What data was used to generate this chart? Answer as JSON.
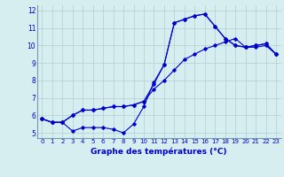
{
  "xlabel": "Graphe des températures (°C)",
  "bg_color": "#d6eef0",
  "grid_color": "#b0cdd0",
  "line_color": "#0000cc",
  "xlim": [
    -0.5,
    23.5
  ],
  "ylim": [
    4.7,
    12.3
  ],
  "xticks": [
    0,
    1,
    2,
    3,
    4,
    5,
    6,
    7,
    8,
    9,
    10,
    11,
    12,
    13,
    14,
    15,
    16,
    17,
    18,
    19,
    20,
    21,
    22,
    23
  ],
  "yticks": [
    5,
    6,
    7,
    8,
    9,
    10,
    11,
    12
  ],
  "line1_x": [
    0,
    1,
    2,
    3,
    4,
    5,
    6,
    7,
    8,
    9,
    10,
    11,
    12,
    13,
    14,
    15,
    16,
    17,
    18,
    19,
    20,
    21,
    22,
    23
  ],
  "line1_y": [
    5.8,
    5.6,
    5.6,
    6.0,
    6.3,
    6.3,
    6.4,
    6.5,
    6.5,
    6.6,
    6.8,
    7.8,
    8.9,
    11.3,
    11.5,
    11.7,
    11.8,
    11.1,
    10.4,
    10.0,
    9.9,
    10.0,
    10.1,
    9.5
  ],
  "line2_x": [
    0,
    1,
    2,
    3,
    4,
    5,
    6,
    7,
    8,
    9,
    10,
    11,
    12,
    13,
    14,
    15,
    16,
    17,
    18,
    19,
    20,
    21,
    22,
    23
  ],
  "line2_y": [
    5.8,
    5.6,
    5.6,
    5.1,
    5.3,
    5.3,
    5.3,
    5.2,
    5.0,
    5.5,
    6.5,
    7.9,
    8.9,
    11.3,
    11.5,
    11.7,
    11.8,
    11.1,
    10.4,
    10.0,
    9.9,
    10.0,
    10.1,
    9.5
  ],
  "line3_x": [
    0,
    1,
    2,
    3,
    4,
    5,
    6,
    7,
    8,
    9,
    10,
    11,
    12,
    13,
    14,
    15,
    16,
    17,
    18,
    19,
    20,
    21,
    22,
    23
  ],
  "line3_y": [
    5.8,
    5.6,
    5.6,
    6.0,
    6.3,
    6.3,
    6.4,
    6.5,
    6.5,
    6.6,
    6.8,
    7.5,
    8.0,
    8.6,
    9.2,
    9.5,
    9.8,
    10.0,
    10.2,
    10.4,
    9.9,
    9.9,
    10.0,
    9.5
  ]
}
